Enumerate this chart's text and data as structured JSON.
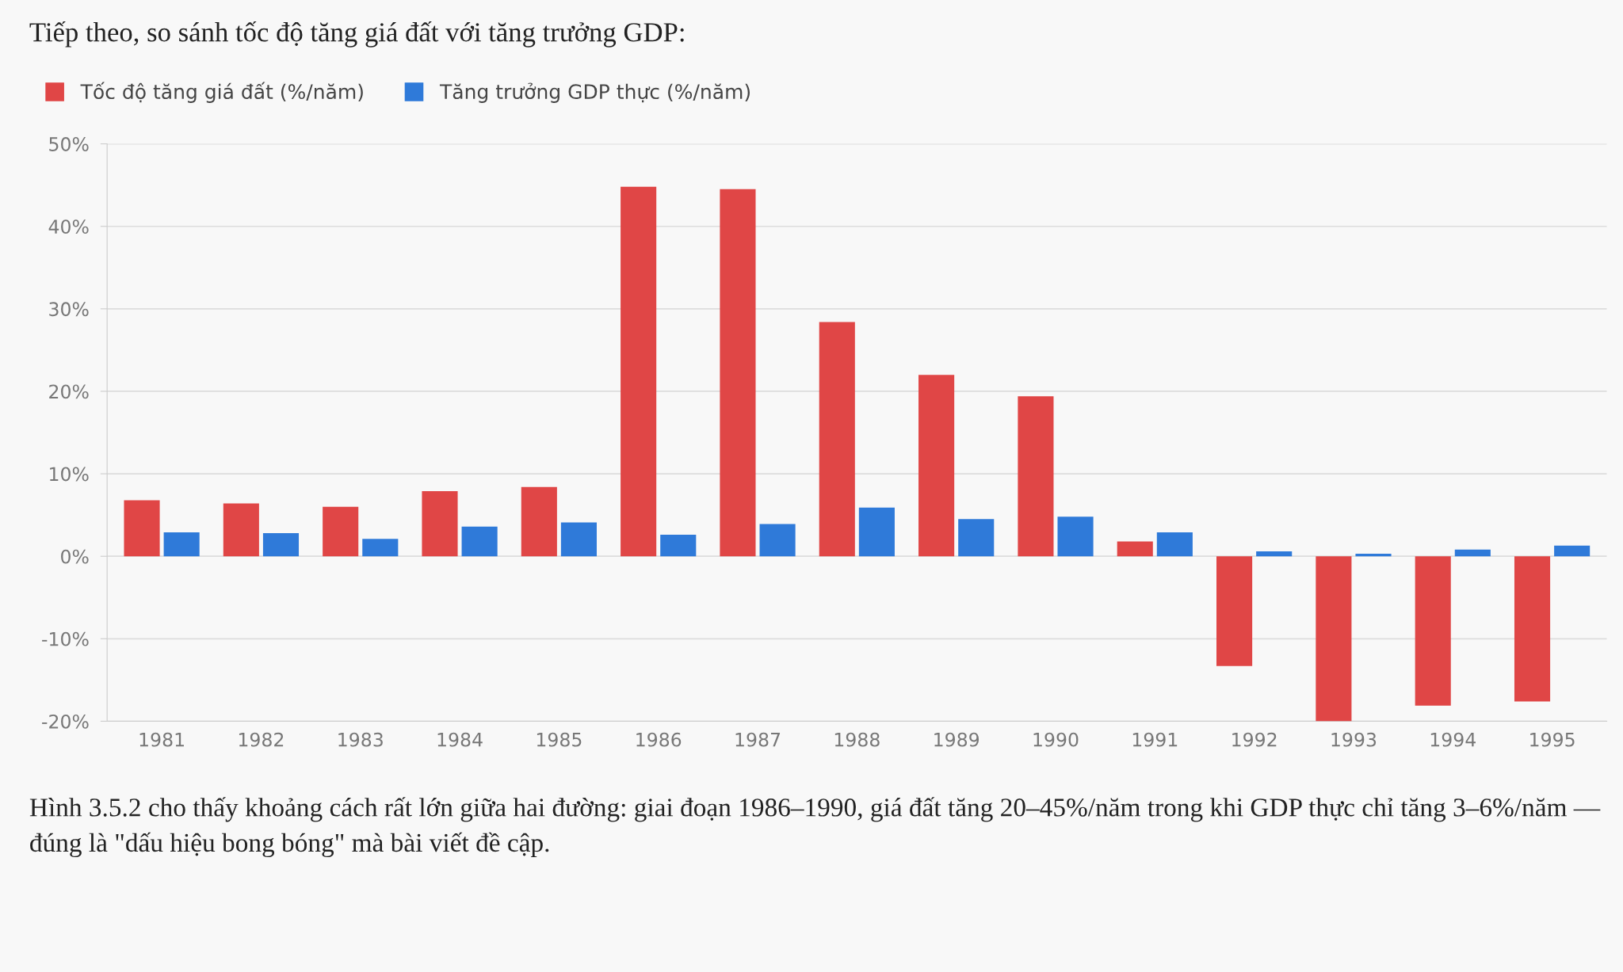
{
  "chart_data": {
    "type": "bar",
    "title": "Tiếp theo, so sánh tốc độ tăng giá đất với tăng trưởng GDP:",
    "categories": [
      "1981",
      "1982",
      "1983",
      "1984",
      "1985",
      "1986",
      "1987",
      "1988",
      "1989",
      "1990",
      "1991",
      "1992",
      "1993",
      "1994",
      "1995"
    ],
    "series": [
      {
        "name": "Tốc độ tăng giá đất (%/năm)",
        "color": "#e04646",
        "values": [
          6.8,
          6.4,
          6.0,
          7.9,
          8.4,
          44.8,
          44.5,
          28.4,
          22.0,
          19.4,
          1.8,
          -13.3,
          -20.0,
          -18.1,
          -17.6
        ]
      },
      {
        "name": "Tăng trưởng GDP thực (%/năm)",
        "color": "#2f7ad9",
        "values": [
          2.9,
          2.8,
          2.1,
          3.6,
          4.1,
          2.6,
          3.9,
          5.9,
          4.5,
          4.8,
          2.9,
          0.6,
          0.3,
          0.8,
          1.3
        ]
      }
    ],
    "ylim": [
      -20,
      50
    ],
    "yticks": [
      {
        "value": -20,
        "label": "-20%"
      },
      {
        "value": -10,
        "label": "-10%"
      },
      {
        "value": 0,
        "label": "0%"
      },
      {
        "value": 10,
        "label": "10%"
      },
      {
        "value": 20,
        "label": "20%"
      },
      {
        "value": 30,
        "label": "30%"
      },
      {
        "value": 40,
        "label": "40%"
      },
      {
        "value": 50,
        "label": "50%"
      }
    ],
    "grid": "y",
    "legend": "top left",
    "annotations": [
      "Hình 3.5.2 cho thấy khoảng cách rất lớn giữa hai đường: giai đoạn 1986–1990, giá đất tăng 20–45%/năm trong khi GDP thực chỉ tăng 3–6%/năm — đúng là \"dấu hiệu bong bóng\" mà bài viết đề cập."
    ]
  }
}
